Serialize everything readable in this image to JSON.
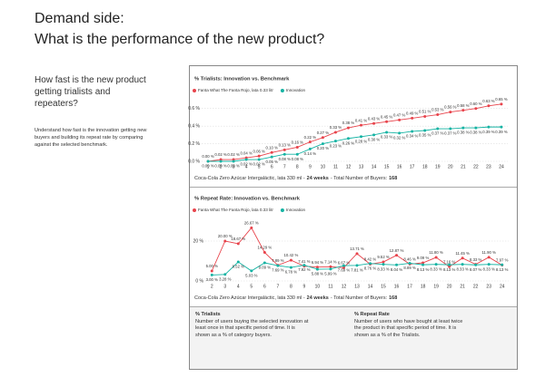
{
  "header": {
    "title": "Demand side:",
    "subtitle": "What is the performance of the new product?"
  },
  "intro": {
    "question": "How fast is the new product getting trialists and repeaters?",
    "description": "Understand how fast is the innovation getting new buyers and building its repeat rate by comparing against the selected benchmark."
  },
  "chart_data": [
    {
      "type": "line",
      "title": "% Trialists: Innovation vs. Benchmark",
      "x": [
        1,
        2,
        3,
        4,
        5,
        6,
        7,
        8,
        9,
        10,
        11,
        12,
        13,
        14,
        15,
        16,
        17,
        18,
        19,
        20,
        21,
        22,
        23,
        24
      ],
      "xlim": [
        0.5,
        24.5
      ],
      "ylim": [
        0,
        0.7
      ],
      "yticks": [
        {
          "value": 0,
          "label": "0.0 %"
        },
        {
          "value": 0.2,
          "label": "0.2 %"
        },
        {
          "value": 0.4,
          "label": "0.4 %"
        },
        {
          "value": 0.6,
          "label": "0.6 %"
        }
      ],
      "grid": true,
      "series": [
        {
          "name": "Fanta What The Fanta Rojo, lata 0.33 litr",
          "color": "#e8434b",
          "values": [
            0.0,
            0.02,
            0.02,
            0.04,
            0.06,
            0.1,
            0.13,
            0.16,
            0.22,
            0.27,
            0.33,
            0.38,
            0.41,
            0.43,
            0.45,
            0.47,
            0.49,
            0.51,
            0.53,
            0.56,
            0.58,
            0.6,
            0.63,
            0.65
          ],
          "value_labels": [
            "0.00 %",
            "0.02 %",
            "0.02 %",
            "0.04 %",
            "0.06 %",
            "0.10 %",
            "0.13 %",
            "0.16 %",
            "0.22 %",
            "0.27 %",
            "0.33 %",
            "0.38 %",
            "0.41 %",
            "0.43 %",
            "0.45 %",
            "0.47 %",
            "0.49 %",
            "0.51 %",
            "0.53 %",
            "0.56 %",
            "0.58 %",
            "0.60 %",
            "0.63 %",
            "0.65 %"
          ]
        },
        {
          "name": "Innovation",
          "color": "#14b3a3",
          "values": [
            0.0,
            0.0,
            0.0,
            0.02,
            0.02,
            0.05,
            0.08,
            0.08,
            0.14,
            0.2,
            0.23,
            0.26,
            0.28,
            0.3,
            0.33,
            0.32,
            0.34,
            0.35,
            0.37,
            0.37,
            0.38,
            0.38,
            0.39,
            0.39
          ],
          "value_labels": [
            "0.00 %",
            "0.00 %",
            "0.00 %",
            "0.02 %",
            "0.02 %",
            "0.05 %",
            "0.08 %",
            "0.08 %",
            "0.14 %",
            "0.20 %",
            "0.23 %",
            "0.26 %",
            "0.28 %",
            "0.30 %",
            "0.33 %",
            "0.32 %",
            "0.34 %",
            "0.35 %",
            "0.37 %",
            "0.37 %",
            "0.38 %",
            "0.38 %",
            "0.39 %",
            "0.39 %"
          ]
        }
      ],
      "footer": {
        "product": "Coca-Cola Zero Azúcar Intergaláctic, lata 330 ml -",
        "weeks": "24 weeks",
        "buyers_label": "- Total Number of Buyers:",
        "buyers": "168"
      }
    },
    {
      "type": "line",
      "title": "% Repeat Rate: Innovation vs. Benchmark",
      "x": [
        2,
        3,
        4,
        5,
        6,
        7,
        8,
        9,
        10,
        11,
        12,
        13,
        14,
        15,
        16,
        17,
        18,
        19,
        20,
        21,
        22,
        23,
        24
      ],
      "xlim": [
        1.5,
        24.5
      ],
      "ylim": [
        0,
        30
      ],
      "yticks": [
        {
          "value": 0,
          "label": "0 %"
        },
        {
          "value": 20,
          "label": "20 %"
        }
      ],
      "grid": true,
      "series": [
        {
          "name": "Fanta What The Fanta Rojo, lata 0.33 litr",
          "color": "#e8434b",
          "values": [
            5.0,
            20.0,
            18.67,
            26.67,
            14.29,
            7.89,
            10.42,
            7.41,
            6.94,
            7.14,
            6.67,
            13.71,
            8.42,
            9.52,
            12.87,
            8.46,
            9.09,
            11.8,
            7.16,
            11.45,
            8.33,
            11.9,
            7.97
          ],
          "value_labels": [
            "5.00 %",
            "20.00 %",
            "18.67 %",
            "26.67 %",
            "14.29 %",
            "7.89 %",
            "10.42 %",
            "7.41 %",
            "6.94 %",
            "7.14 %",
            "6.67 %",
            "13.71 %",
            "8.42 %",
            "9.52 %",
            "12.87 %",
            "8.46 %",
            "9.09 %",
            "11.80 %",
            "7.16 %",
            "11.45 %",
            "8.33 %",
            "11.90 %",
            "7.97 %"
          ]
        },
        {
          "name": "Innovation",
          "color": "#14b3a3",
          "values": [
            3.0,
            3.28,
            9.52,
            5.03,
            9.09,
            7.69,
            6.78,
            7.92,
            5.88,
            5.99,
            7.69,
            7.81,
            8.76,
            8.33,
            8.04,
            8.89,
            8.13,
            8.33,
            8.13,
            8.33,
            8.07,
            8.33,
            8.13
          ],
          "value_labels": [
            "3.00 %",
            "3.28 %",
            "9.52 %",
            "5.03 %",
            "9.09 %",
            "7.69 %",
            "6.78 %",
            "7.92 %",
            "5.88 %",
            "5.99 %",
            "7.69 %",
            "7.81 %",
            "8.76 %",
            "8.33 %",
            "8.04 %",
            "8.89 %",
            "8.13 %",
            "8.33 %",
            "8.13 %",
            "8.33 %",
            "8.07 %",
            "8.33 %",
            "8.13 %"
          ]
        }
      ],
      "footer": {
        "product": "Coca-Cola Zero Azúcar Intergaláctic, lata 330 ml -",
        "weeks": "24 weeks",
        "buyers_label": "- Total Number of Buyers:",
        "buyers": "168"
      }
    }
  ],
  "notes": [
    {
      "title": "% Trialists",
      "text": "Number of users buying the selected innovation at least once in that specific period of time. It is shown as a % of category buyers."
    },
    {
      "title": "% Repeat Rate",
      "text": "Number of users who have bought at least twice the product in that specific period of time. It is shown as a % of the Trialists."
    }
  ]
}
